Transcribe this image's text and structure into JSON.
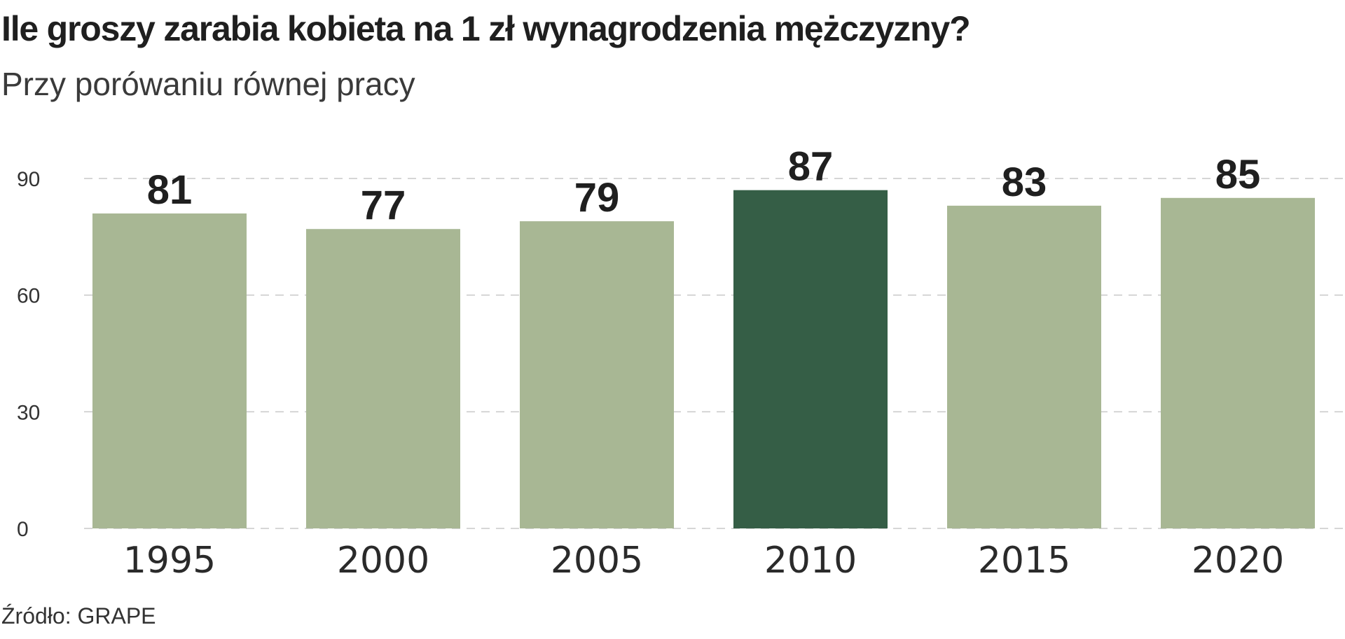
{
  "header": {
    "title": "Ile groszy zarabia kobieta na 1 zł wynagrodzenia mężczyzny?",
    "subtitle": "Przy porówaniu równej pracy"
  },
  "footer": {
    "source": "Źródło: GRAPE"
  },
  "colors": {
    "bar": "#a8b794",
    "highlight": "#355e46",
    "grid": "#c8c8c8",
    "text": "#1f1f1f"
  },
  "chart_data": {
    "type": "bar",
    "title": "Ile groszy zarabia kobieta na 1 zł wynagrodzenia mężczyzny?",
    "subtitle": "Przy porówaniu równej pracy",
    "categories": [
      "1995",
      "2000",
      "2005",
      "2010",
      "2015",
      "2020"
    ],
    "values": [
      81,
      77,
      79,
      87,
      83,
      85
    ],
    "value_labels": [
      "81",
      "77",
      "79",
      "87",
      "83",
      "85"
    ],
    "highlight": "2010",
    "xlabel": "",
    "ylabel": "",
    "ylim": [
      0,
      90
    ],
    "yticks": [
      0,
      30,
      60,
      90
    ],
    "ytick_labels": [
      "0",
      "30",
      "60",
      "90"
    ],
    "grid": true,
    "source": "Źródło: GRAPE"
  }
}
